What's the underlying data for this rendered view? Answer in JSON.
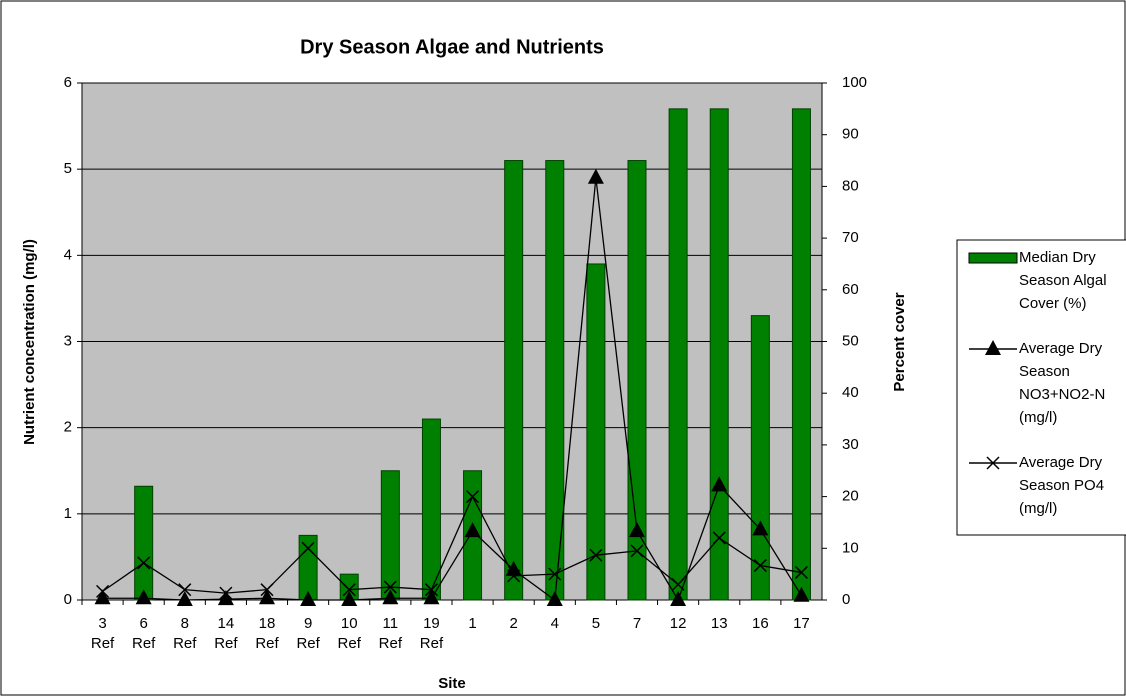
{
  "chart_data": {
    "type": "combo",
    "title": "Dry Season Algae and Nutrients",
    "x_label": "Site",
    "y_label": "Nutrient concentration (mg/l)",
    "y2_label": "Percent cover",
    "categories": [
      "3 Ref",
      "6 Ref",
      "8 Ref",
      "14 Ref",
      "18 Ref",
      "9 Ref",
      "10 Ref",
      "11 Ref",
      "19 Ref",
      "1",
      "2",
      "4",
      "5",
      "7",
      "12",
      "13",
      "16",
      "17"
    ],
    "ylim": [
      0,
      6
    ],
    "yticks": [
      0,
      1,
      2,
      3,
      4,
      5,
      6
    ],
    "y2lim": [
      0,
      100
    ],
    "y2ticks": [
      0,
      10,
      20,
      30,
      40,
      50,
      60,
      70,
      80,
      90,
      100
    ],
    "grid": true,
    "legend": "right",
    "series": [
      {
        "name": "Median Dry Season Algal Cover (%)",
        "type": "bar",
        "axis": "y2",
        "color": "#008000",
        "values": [
          0,
          22,
          0,
          0,
          0,
          12.5,
          5,
          25,
          35,
          25,
          85,
          85,
          65,
          85,
          95,
          95,
          55,
          95
        ]
      },
      {
        "name": "Average Dry Season NO3+NO2-N (mg/l)",
        "type": "line",
        "marker": "triangle",
        "color": "#000000",
        "values": [
          0.02,
          0.02,
          0,
          0.01,
          0.02,
          0,
          0,
          0.02,
          0.02,
          0.8,
          0.35,
          0,
          4.9,
          0.8,
          0,
          1.33,
          0.82,
          0.05
        ]
      },
      {
        "name": "Average Dry Season PO4 (mg/l)",
        "type": "line",
        "marker": "x",
        "color": "#000000",
        "values": [
          0.1,
          0.43,
          0.12,
          0.08,
          0.12,
          0.6,
          0.12,
          0.15,
          0.12,
          1.2,
          0.28,
          0.3,
          0.52,
          0.57,
          0.18,
          0.72,
          0.4,
          0.32
        ]
      }
    ]
  }
}
